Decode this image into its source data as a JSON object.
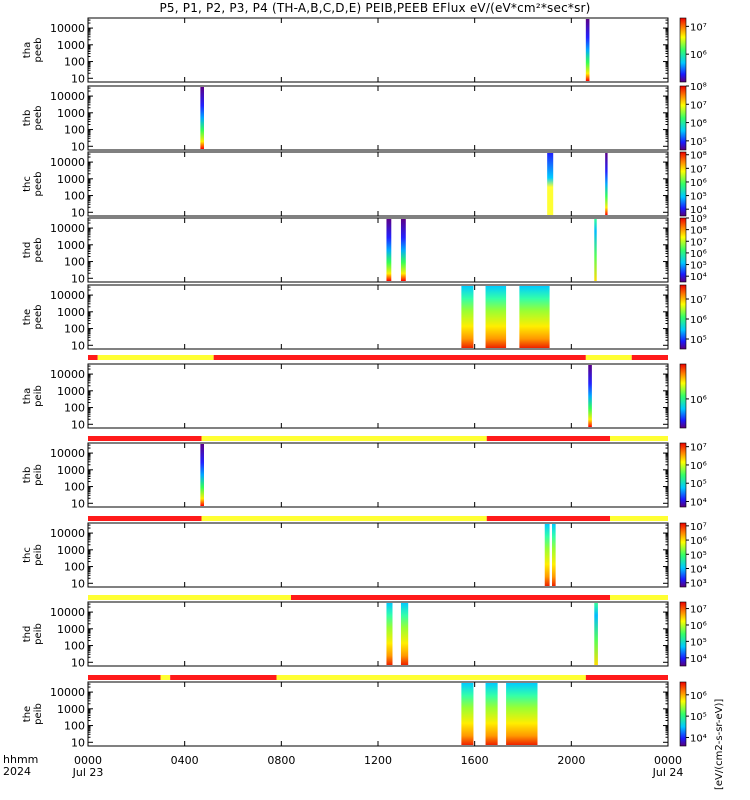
{
  "title_text": "P5, P1, P2, P3, P4 (TH-A,B,C,D,E) PEIB,PEEB EFlux eV/(eV*cm²*sec*sr)",
  "colorbar_unit": "[eV/(cm2-s-sr-eV)]",
  "colors": {
    "mode_fast": "#ff1a1a",
    "mode_slow": "#ffff33"
  },
  "x_axis": {
    "row_label_1": "hhmm",
    "row_label_2": "2024",
    "ticks": [
      {
        "hour": 0,
        "label": "0000",
        "sub": "Jul 23"
      },
      {
        "hour": 4,
        "label": "0400",
        "sub": ""
      },
      {
        "hour": 8,
        "label": "0800",
        "sub": ""
      },
      {
        "hour": 12,
        "label": "1200",
        "sub": ""
      },
      {
        "hour": 16,
        "label": "1600",
        "sub": ""
      },
      {
        "hour": 20,
        "label": "2000",
        "sub": ""
      },
      {
        "hour": 24,
        "label": "0000",
        "sub": "Jul 24"
      }
    ],
    "range_hours": [
      0,
      24
    ]
  },
  "chart_data": {
    "type": "heatmap",
    "quantity": "Energy flux spectrogram, eV/(eV*cm²*sec*sr)",
    "x_unit": "hours (UT) from 2024-07-23 00:00",
    "y_axis": {
      "scale": "log",
      "range": [
        6,
        40000
      ],
      "ticks": [
        10,
        100,
        1000,
        10000
      ],
      "tick_labels": [
        "10",
        "100",
        "1000",
        "10000"
      ]
    },
    "panels": [
      {
        "id": "tha-peeb",
        "label_line1": "tha",
        "label_line2": "peeb",
        "cbar": {
          "range": [
            5,
            7.3
          ],
          "ticks": [
            6,
            7
          ],
          "tick_labels": [
            "10⁶",
            "10⁷"
          ]
        },
        "blocks": [
          {
            "x0": 20.6,
            "x1": 20.75,
            "type": "beam"
          }
        ]
      },
      {
        "id": "thb-peeb",
        "label_line1": "thb",
        "label_line2": "peeb",
        "cbar": {
          "range": [
            4.5,
            8
          ],
          "ticks": [
            5,
            6,
            7,
            8
          ],
          "tick_labels": [
            "10⁵",
            "10⁶",
            "10⁷",
            "10⁸"
          ]
        },
        "blocks": [
          {
            "x0": 4.65,
            "x1": 4.8,
            "type": "beam"
          }
        ]
      },
      {
        "id": "thc-peeb",
        "label_line1": "thc",
        "label_line2": "peeb",
        "cbar": {
          "range": [
            3.5,
            8.2
          ],
          "ticks": [
            4,
            5,
            6,
            7,
            8
          ],
          "tick_labels": [
            "10⁴",
            "10⁵",
            "10⁶",
            "10⁷",
            "10⁸"
          ]
        },
        "blocks": [
          {
            "x0": 19.0,
            "x1": 19.25,
            "type": "hi"
          },
          {
            "x0": 21.4,
            "x1": 21.5,
            "type": "beam"
          }
        ]
      },
      {
        "id": "thd-peeb",
        "label_line1": "thd",
        "label_line2": "peeb",
        "cbar": {
          "range": [
            3.5,
            9
          ],
          "ticks": [
            4,
            5,
            6,
            7,
            8,
            9
          ],
          "tick_labels": [
            "10⁴",
            "10⁵",
            "10⁶",
            "10⁷",
            "10⁸",
            "10⁹"
          ]
        },
        "blocks": [
          {
            "x0": 12.35,
            "x1": 12.55,
            "type": "beam"
          },
          {
            "x0": 12.95,
            "x1": 13.15,
            "type": "beam"
          },
          {
            "x0": 20.95,
            "x1": 21.05,
            "type": "mid"
          }
        ]
      },
      {
        "id": "the-peeb",
        "label_line1": "the",
        "label_line2": "peeb",
        "cbar": {
          "range": [
            4.5,
            7.7
          ],
          "ticks": [
            5,
            6,
            7
          ],
          "tick_labels": [
            "10⁵",
            "10⁶",
            "10⁷"
          ]
        },
        "blocks": [
          {
            "x0": 15.45,
            "x1": 15.95,
            "type": "dense"
          },
          {
            "x0": 16.45,
            "x1": 17.3,
            "type": "dense"
          },
          {
            "x0": 17.85,
            "x1": 19.1,
            "type": "dense"
          }
        ]
      },
      {
        "id": "tha-peib",
        "label_line1": "tha",
        "label_line2": "peib",
        "cbar": {
          "range": [
            5.5,
            6.6
          ],
          "ticks": [
            6
          ],
          "tick_labels": [
            "10⁶"
          ]
        },
        "blocks": [
          {
            "x0": 20.7,
            "x1": 20.85,
            "type": "beam"
          }
        ]
      },
      {
        "id": "thb-peib",
        "label_line1": "thb",
        "label_line2": "peib",
        "cbar": {
          "range": [
            3.7,
            7.2
          ],
          "ticks": [
            4,
            5,
            6,
            7
          ],
          "tick_labels": [
            "10⁴",
            "10⁵",
            "10⁶",
            "10⁷"
          ]
        },
        "blocks": [
          {
            "x0": 4.65,
            "x1": 4.8,
            "type": "beam"
          }
        ]
      },
      {
        "id": "thc-peib",
        "label_line1": "thc",
        "label_line2": "peib",
        "cbar": {
          "range": [
            2.7,
            7.2
          ],
          "ticks": [
            3,
            4,
            5,
            6,
            7
          ],
          "tick_labels": [
            "10³",
            "10⁴",
            "10⁵",
            "10⁶",
            "10⁷"
          ]
        },
        "blocks": [
          {
            "x0": 18.9,
            "x1": 19.1,
            "type": "dense"
          },
          {
            "x0": 19.2,
            "x1": 19.35,
            "type": "dense"
          }
        ]
      },
      {
        "id": "thd-peib",
        "label_line1": "thd",
        "label_line2": "peib",
        "cbar": {
          "range": [
            3.5,
            7.4
          ],
          "ticks": [
            4,
            5,
            6,
            7
          ],
          "tick_labels": [
            "10⁴",
            "10⁵",
            "10⁶",
            "10⁷"
          ]
        },
        "blocks": [
          {
            "x0": 12.35,
            "x1": 12.6,
            "type": "dense"
          },
          {
            "x0": 12.95,
            "x1": 13.25,
            "type": "dense"
          },
          {
            "x0": 20.95,
            "x1": 21.1,
            "type": "mid"
          }
        ]
      },
      {
        "id": "the-peib",
        "label_line1": "the",
        "label_line2": "peib",
        "cbar": {
          "range": [
            3.6,
            6.6
          ],
          "ticks": [
            4,
            5,
            6
          ],
          "tick_labels": [
            "10⁴",
            "10⁵",
            "10⁶"
          ]
        },
        "blocks": [
          {
            "x0": 15.45,
            "x1": 15.95,
            "type": "dense"
          },
          {
            "x0": 16.45,
            "x1": 16.95,
            "type": "dense"
          },
          {
            "x0": 17.3,
            "x1": 18.6,
            "type": "dense"
          }
        ]
      }
    ],
    "mode_bars": [
      {
        "after_panel": "the-peeb",
        "segments": [
          [
            0,
            0.4,
            "fast"
          ],
          [
            0.4,
            5.2,
            "slow"
          ],
          [
            5.2,
            20.6,
            "fast"
          ],
          [
            20.6,
            22.5,
            "slow"
          ],
          [
            22.5,
            24,
            "fast"
          ]
        ]
      },
      {
        "after_panel": "tha-peib",
        "segments": [
          [
            0,
            4.7,
            "fast"
          ],
          [
            4.7,
            16.5,
            "slow"
          ],
          [
            16.5,
            21.6,
            "fast"
          ],
          [
            21.6,
            24,
            "slow"
          ]
        ]
      },
      {
        "after_panel": "thb-peib",
        "segments": [
          [
            0,
            4.7,
            "fast"
          ],
          [
            4.7,
            16.5,
            "slow"
          ],
          [
            16.5,
            21.6,
            "fast"
          ],
          [
            21.6,
            24,
            "slow"
          ]
        ]
      },
      {
        "after_panel": "thc-peib",
        "segments": [
          [
            0,
            8.4,
            "slow"
          ],
          [
            8.4,
            21.6,
            "fast"
          ],
          [
            21.6,
            24,
            "slow"
          ]
        ]
      },
      {
        "after_panel": "thd-peib",
        "segments": [
          [
            0,
            3.0,
            "fast"
          ],
          [
            3.0,
            3.4,
            "slow"
          ],
          [
            3.4,
            7.8,
            "fast"
          ],
          [
            7.8,
            20.6,
            "slow"
          ],
          [
            20.6,
            21.6,
            "fast"
          ],
          [
            21.6,
            24,
            "fast"
          ]
        ]
      }
    ]
  }
}
